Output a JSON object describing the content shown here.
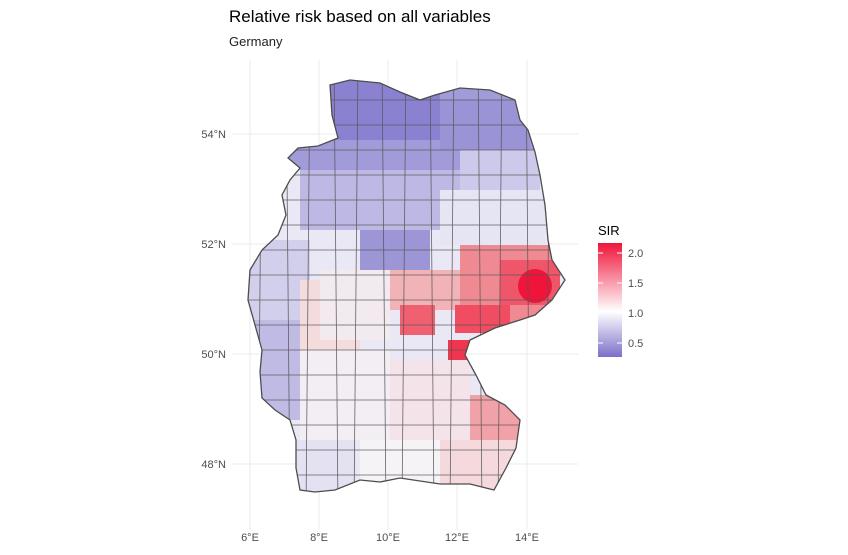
{
  "title": "Relative risk based on all variables",
  "subtitle": "Germany",
  "x_ticks": [
    "6°E",
    "8°E",
    "10°E",
    "12°E",
    "14°E"
  ],
  "y_ticks": [
    "54°N",
    "52°N",
    "50°N",
    "48°N"
  ],
  "legend": {
    "title": "SIR",
    "labels": [
      "2.0",
      "1.5",
      "1.0",
      "0.5"
    ],
    "values": [
      2.0,
      1.5,
      1.0,
      0.5
    ],
    "min": 0.25,
    "max": 2.15,
    "colors": {
      "low": "#7b6fc9",
      "mid": "#ffffff",
      "high": "#f0143a"
    }
  },
  "colors": {
    "grid": "#ebebeb",
    "border": "#4d4d4d",
    "axis_text": "#4d4d4d"
  }
}
